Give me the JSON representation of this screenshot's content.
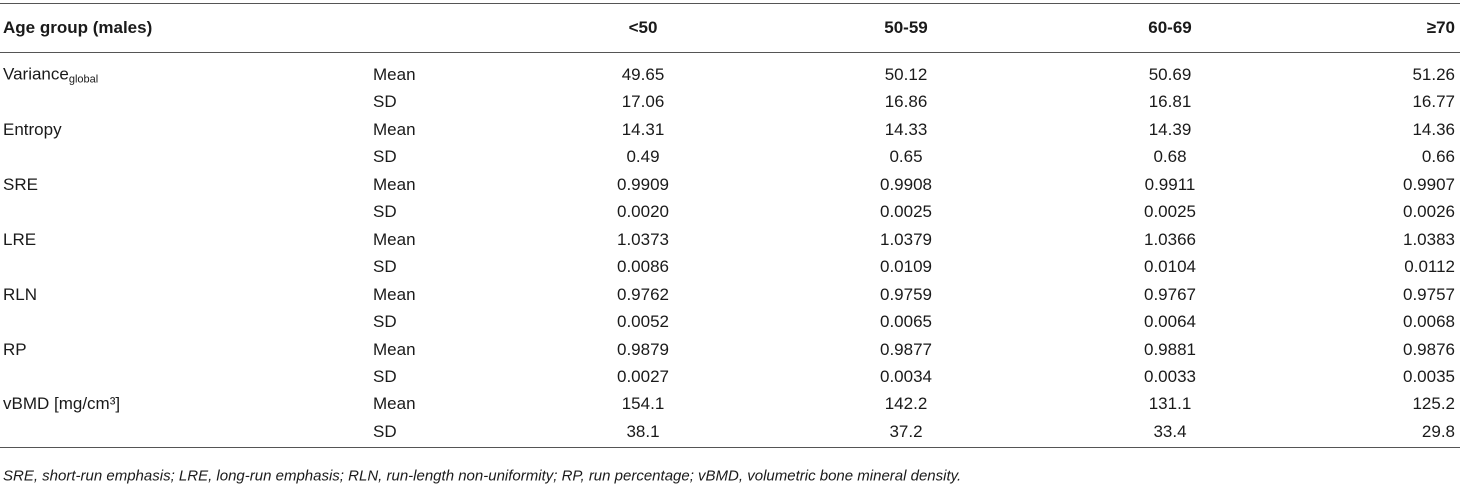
{
  "table": {
    "header": {
      "first": "Age group (males)",
      "columns": [
        "<50",
        "50-59",
        "60-69",
        "≥70"
      ]
    },
    "rows": [
      {
        "label": {
          "text": "Variance",
          "sub": "global"
        },
        "stat": "Mean",
        "values": [
          "49.65",
          "50.12",
          "50.69",
          "51.26"
        ]
      },
      {
        "stat": "SD",
        "values": [
          "17.06",
          "16.86",
          "16.81",
          "16.77"
        ]
      },
      {
        "label": {
          "text": "Entropy"
        },
        "stat": "Mean",
        "values": [
          "14.31",
          "14.33",
          "14.39",
          "14.36"
        ]
      },
      {
        "stat": "SD",
        "values": [
          "0.49",
          "0.65",
          "0.68",
          "0.66"
        ]
      },
      {
        "label": {
          "text": "SRE"
        },
        "stat": "Mean",
        "values": [
          "0.9909",
          "0.9908",
          "0.9911",
          "0.9907"
        ]
      },
      {
        "stat": "SD",
        "values": [
          "0.0020",
          "0.0025",
          "0.0025",
          "0.0026"
        ]
      },
      {
        "label": {
          "text": "LRE"
        },
        "stat": "Mean",
        "values": [
          "1.0373",
          "1.0379",
          "1.0366",
          "1.0383"
        ]
      },
      {
        "stat": "SD",
        "values": [
          "0.0086",
          "0.0109",
          "0.0104",
          "0.0112"
        ]
      },
      {
        "label": {
          "text": "RLN"
        },
        "stat": "Mean",
        "values": [
          "0.9762",
          "0.9759",
          "0.9767",
          "0.9757"
        ]
      },
      {
        "stat": "SD",
        "values": [
          "0.0052",
          "0.0065",
          "0.0064",
          "0.0068"
        ]
      },
      {
        "label": {
          "text": "RP"
        },
        "stat": "Mean",
        "values": [
          "0.9879",
          "0.9877",
          "0.9881",
          "0.9876"
        ]
      },
      {
        "stat": "SD",
        "values": [
          "0.0027",
          "0.0034",
          "0.0033",
          "0.0035"
        ]
      },
      {
        "label": {
          "text": "vBMD [mg/cm³]"
        },
        "stat": "Mean",
        "values": [
          "154.1",
          "142.2",
          "131.1",
          "125.2"
        ]
      },
      {
        "stat": "SD",
        "values": [
          "38.1",
          "37.2",
          "33.4",
          "29.8"
        ]
      }
    ]
  },
  "footnote": "SRE, short-run emphasis; LRE, long-run emphasis; RLN, run-length non-uniformity; RP, run percentage; vBMD, volumetric bone mineral density."
}
